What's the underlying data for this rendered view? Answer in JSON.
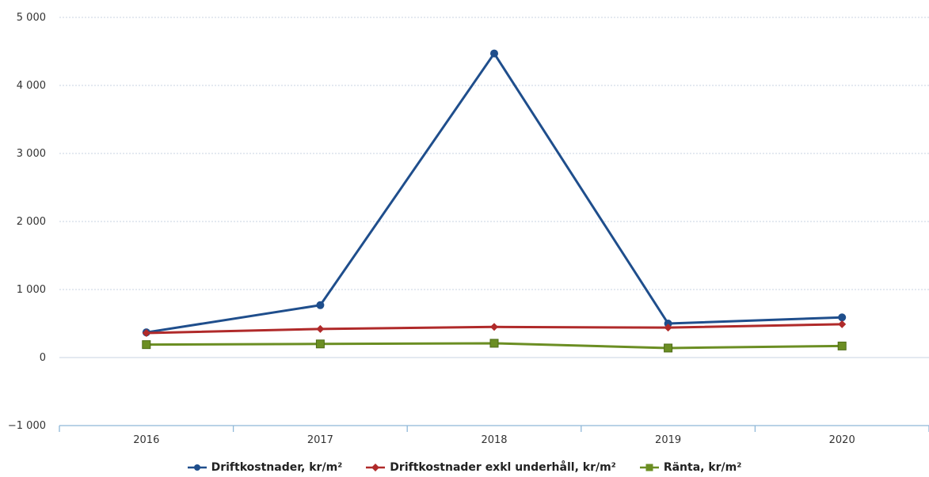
{
  "chart_data": {
    "type": "line",
    "categories": [
      "2016",
      "2017",
      "2018",
      "2019",
      "2020"
    ],
    "ylim": [
      -1000,
      5000
    ],
    "yticks": [
      -1000,
      0,
      1000,
      2000,
      3000,
      4000,
      5000
    ],
    "ytick_labels": [
      "−1 000",
      "0",
      "1 000",
      "2 000",
      "3 000",
      "4 000",
      "5 000"
    ],
    "grid": true,
    "legend_position": "bottom",
    "series": [
      {
        "name": "Driftkostnader, kr/m²",
        "color": "#1f4e8c",
        "marker": "circle",
        "values": [
          370,
          770,
          4470,
          500,
          590
        ]
      },
      {
        "name": "Driftkostnader exkl underhåll, kr/m²",
        "color": "#b02a2a",
        "marker": "diamond",
        "values": [
          360,
          420,
          450,
          440,
          490
        ]
      },
      {
        "name": "Ränta, kr/m²",
        "color": "#6b8e23",
        "marker": "square",
        "values": [
          190,
          200,
          210,
          140,
          170
        ]
      }
    ]
  }
}
